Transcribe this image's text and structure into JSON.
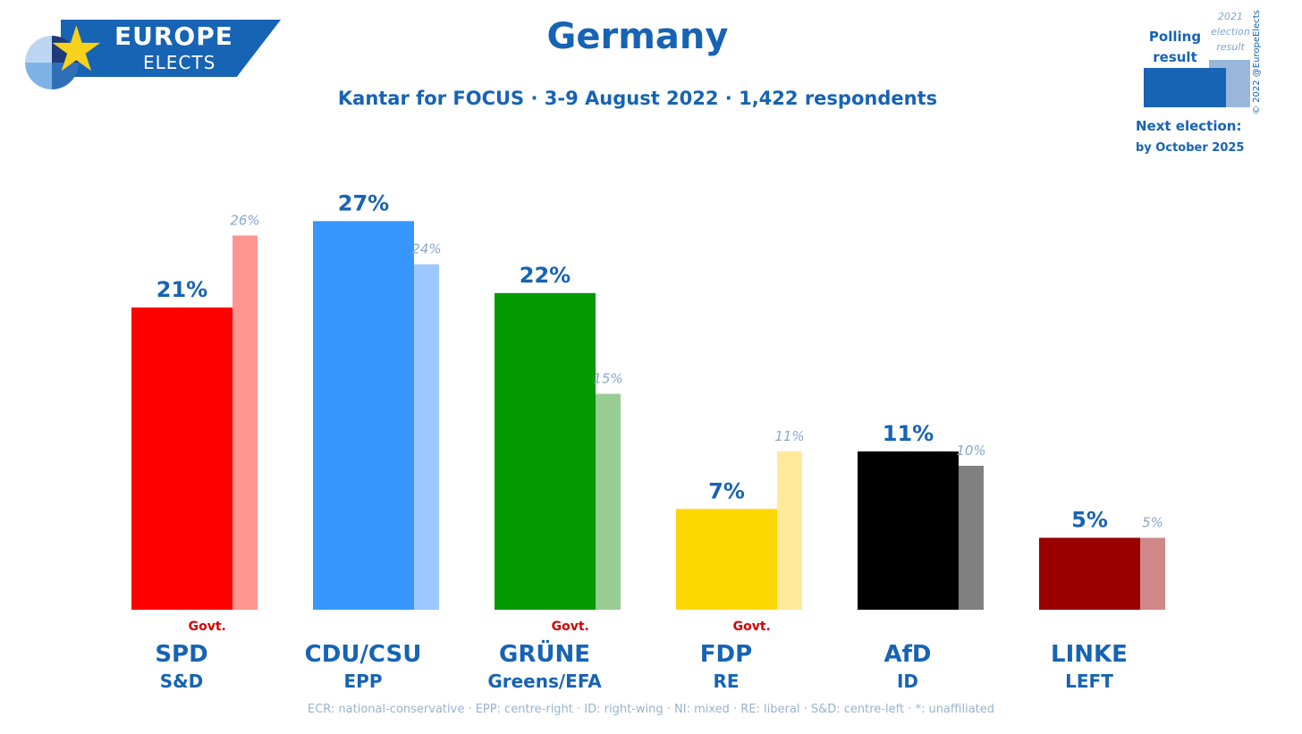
{
  "brand": {
    "line1": "EUROPE",
    "line2": "ELECTS"
  },
  "title": "Germany",
  "subtitle": "Kantar for FOCUS · 3-9 August 2022 · 1,422 respondents",
  "legend": {
    "poll_label": "Polling result",
    "election_label": "2021 election result",
    "next_label": "Next election:",
    "next_value": "by October 2025"
  },
  "copyright": "© 2022 @EuropeElects",
  "footer": "ECR: national-conservative · EPP: centre-right · ID: right-wing · NI: mixed · RE: liberal · S&D: centre-left · *: unaffiliated",
  "chart_data": {
    "type": "bar",
    "categories": [
      "SPD",
      "CDU/CSU",
      "GRÜNE",
      "FDP",
      "AfD",
      "LINKE"
    ],
    "groups": [
      "S&D",
      "EPP",
      "Greens/EFA",
      "RE",
      "ID",
      "LEFT"
    ],
    "govt": [
      true,
      false,
      true,
      true,
      false,
      false
    ],
    "govt_label": "Govt.",
    "series": [
      {
        "name": "Polling result",
        "values": [
          21,
          27,
          22,
          7,
          11,
          5
        ]
      },
      {
        "name": "2021 election result",
        "values": [
          26,
          24,
          15,
          11,
          10,
          5
        ]
      }
    ],
    "colors": {
      "poll": [
        "#ff0000",
        "#3797ff",
        "#059a00",
        "#fdd700",
        "#000000",
        "#9b0000"
      ],
      "election": [
        "#ff9590",
        "#9dc8ff",
        "#99cc94",
        "#ffe99a",
        "#808080",
        "#cf8888"
      ],
      "text": "#1763b4",
      "election_text": "#8aa8cc",
      "govt_text": "#d40000"
    },
    "ylim": [
      0,
      30
    ],
    "grid": false,
    "legend_position": "top-right"
  }
}
